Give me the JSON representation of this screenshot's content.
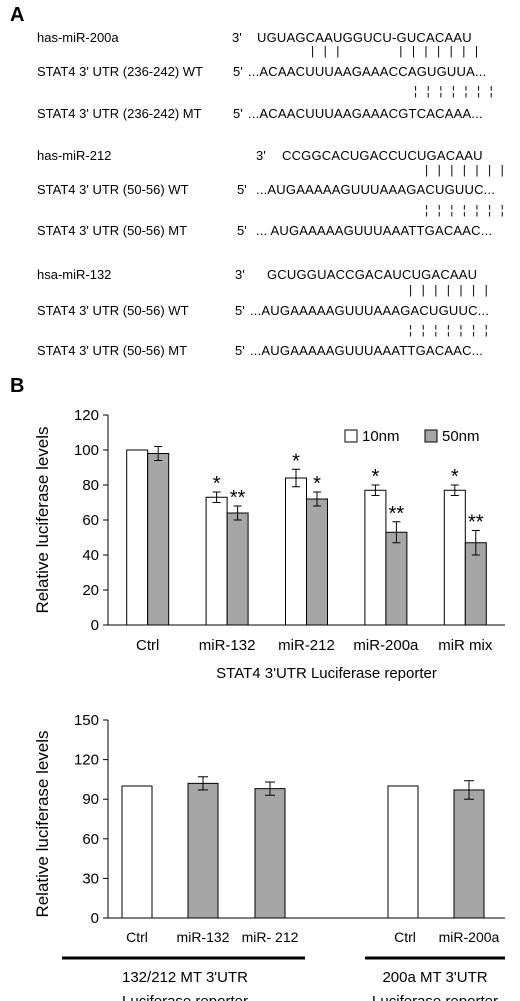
{
  "panel_a": {
    "letter": "A",
    "groups": [
      {
        "mirna_label": "has-miR-200a",
        "mirna_prime": "3'",
        "mirna_seq": "UGUAGCAAUGGUCU-GUCACAAU",
        "wt_label": "STAT4 3' UTR (236-242) WT",
        "wt_prime": "5'",
        "wt_seq": "...ACAACUUUAAGAAACCAGUGUUA...",
        "wt_pairs": "| | |         | | | | | | |",
        "mt_label": "STAT4 3' UTR (236-242) MT",
        "mt_prime": "5'",
        "mt_seq": "...ACAACUUUAAGAAACGTCACAAA...",
        "mt_pairs": "¦ ¦ ¦ ¦ ¦ ¦ ¦"
      },
      {
        "mirna_label": "has-miR-212",
        "mirna_prime": "3'",
        "mirna_seq": "CCGGCACUGACCUCUGACAAU",
        "wt_label": "STAT4 3' UTR (50-56) WT",
        "wt_prime": "5'",
        "wt_seq": "...AUGAAAAAGUUUAAAGACUGUUC...",
        "wt_pairs": "| | | | | | |",
        "mt_label": "STAT4 3' UTR (50-56) MT",
        "mt_prime": "5'",
        "mt_seq": "... AUGAAAAAGUUUAAATTGACAAC...",
        "mt_pairs": "¦ ¦ ¦ ¦ ¦ ¦ ¦"
      },
      {
        "mirna_label": "hsa-miR-132",
        "mirna_prime": "3'",
        "mirna_seq": "GCUGGUACCGACAUCUGACAAU",
        "wt_label": "STAT4 3' UTR (50-56) WT",
        "wt_prime": "5'",
        "wt_seq": "...AUGAAAAAGUUUAAAGACUGUUC...",
        "wt_pairs": "| | | | | | |",
        "mt_label": "STAT4 3' UTR (50-56) MT",
        "mt_prime": "5'",
        "mt_seq": "...AUGAAAAAGUUUAAATTGACAAC...",
        "mt_pairs": "¦ ¦ ¦ ¦ ¦ ¦ ¦"
      }
    ]
  },
  "panel_b": {
    "letter": "B"
  },
  "colors": {
    "series_10nm": "#ffffff",
    "series_50nm": "#a6a6a6",
    "stroke": "#000000"
  },
  "chart_data": [
    {
      "type": "bar",
      "title": "",
      "xlabel": "STAT4 3'UTR Luciferase reporter",
      "ylabel": "Relative luciferase levels",
      "ylim": [
        0,
        120
      ],
      "yticks": [
        0,
        20,
        40,
        60,
        80,
        100,
        120
      ],
      "grid": false,
      "legend": "top-right",
      "categories": [
        "Ctrl",
        "miR-132",
        "miR-212",
        "miR-200a",
        "miR mix"
      ],
      "series": [
        {
          "name": "10nm",
          "values": [
            100,
            73,
            84,
            77,
            77
          ],
          "errors": [
            0,
            3,
            5,
            3,
            3
          ],
          "marks": [
            "",
            "*",
            "*",
            "*",
            "*"
          ]
        },
        {
          "name": "50nm",
          "values": [
            98,
            64,
            72,
            53,
            47
          ],
          "errors": [
            4,
            4,
            4,
            6,
            7
          ],
          "marks": [
            "",
            "**",
            "*",
            "**",
            "**"
          ]
        }
      ]
    },
    {
      "type": "bar",
      "title": "",
      "ylabel": "Relative luciferase levels",
      "ylim": [
        0,
        150
      ],
      "yticks": [
        0,
        30,
        60,
        90,
        120,
        150
      ],
      "grid": false,
      "categories": [
        "Ctrl",
        "miR-132",
        "miR- 212",
        "Ctrl",
        "miR-200a"
      ],
      "values": [
        100,
        102,
        98,
        100,
        97
      ],
      "errors": [
        0,
        5,
        5,
        0,
        7
      ],
      "fills": [
        "white",
        "gray",
        "gray",
        "white",
        "gray"
      ],
      "groups": [
        {
          "label_line1": "132/212 MT 3'UTR",
          "label_line2": "Luciferase reporter"
        },
        {
          "label_line1": "200a MT 3'UTR",
          "label_line2": "Luciferase reporter"
        }
      ]
    }
  ]
}
